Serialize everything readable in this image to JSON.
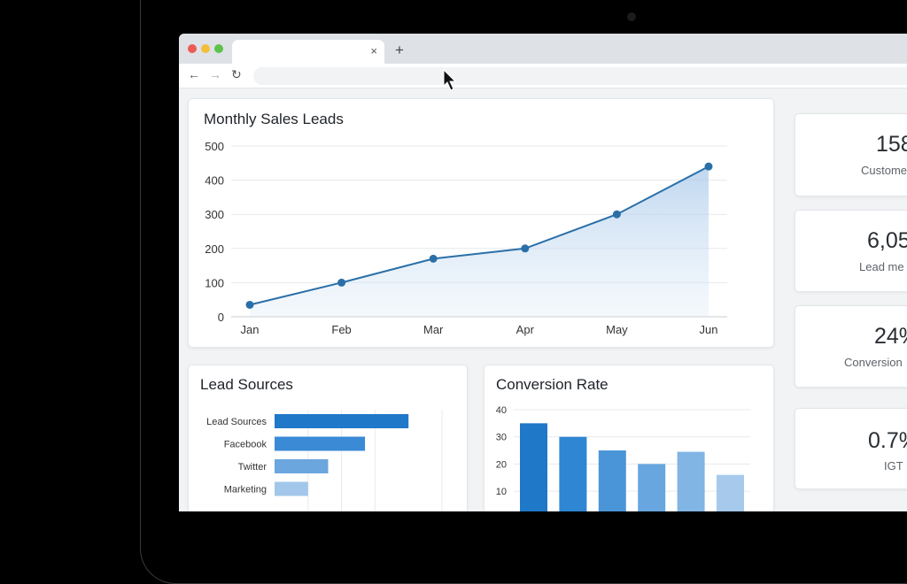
{
  "browser": {
    "tab_close": "×",
    "new_tab": "+",
    "back": "←",
    "forward": "→",
    "reload": "↻"
  },
  "line_card": {
    "title": "Monthly Sales Leads"
  },
  "stats": [
    {
      "value": "158",
      "label": "Custome"
    },
    {
      "value": "6,05",
      "label": "Lead me"
    },
    {
      "value": "24%",
      "label": "Conversion"
    },
    {
      "value": "0.7%",
      "label": "IGT"
    }
  ],
  "lead_card": {
    "title": "Lead Sources"
  },
  "conv_card": {
    "title": "Conversion Rate"
  },
  "chart_data": [
    {
      "type": "area",
      "title": "Monthly Sales Leads",
      "categories": [
        "Jan",
        "Feb",
        "Mar",
        "Apr",
        "May",
        "Jun"
      ],
      "values": [
        35,
        100,
        170,
        200,
        300,
        440
      ],
      "ylim": [
        0,
        500
      ],
      "yticks": [
        0,
        100,
        200,
        300,
        400,
        500
      ],
      "grid": true,
      "color": "#2a6fa8"
    },
    {
      "type": "bar",
      "orientation": "horizontal",
      "title": "Lead Sources",
      "categories": [
        "Lead Sources",
        "Facebook",
        "Twitter",
        "Marketing"
      ],
      "values": [
        4,
        2.7,
        1.6,
        1
      ],
      "xlim": [
        0,
        5
      ],
      "grid": true,
      "colors": [
        "#1f78c8",
        "#3a8ad6",
        "#6ba6de",
        "#a3c7ea"
      ]
    },
    {
      "type": "bar",
      "title": "Conversion Rate",
      "values": [
        35,
        30,
        25,
        20,
        24.5,
        16
      ],
      "ylim": [
        0,
        40
      ],
      "yticks": [
        10,
        20,
        30,
        40
      ],
      "grid": true,
      "colors": [
        "#1f78c8",
        "#2f86d2",
        "#4a95d8",
        "#67a6df",
        "#80b5e4",
        "#a6c9ec"
      ]
    }
  ]
}
